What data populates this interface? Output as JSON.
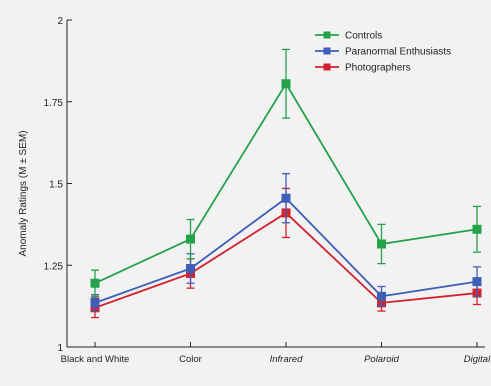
{
  "chart_data": {
    "type": "line",
    "title": "",
    "xlabel": "",
    "ylabel": "Anomaly Ratings (M ± SEM)",
    "ylim": [
      1,
      2
    ],
    "yticks": [
      "1",
      "1.25",
      "1.5",
      "1.75",
      "2"
    ],
    "yticks_values": [
      1,
      1.25,
      1.5,
      1.75,
      2
    ],
    "categories": [
      "Black and White",
      "Color",
      "Infrared",
      "Polaroid",
      "Digital"
    ],
    "category_italic": [
      false,
      false,
      true,
      true,
      true
    ],
    "grid": false,
    "legend_position": "top-right",
    "series": [
      {
        "name": "Controls",
        "color": "#23a24a",
        "values": [
          1.195,
          1.33,
          1.805,
          1.315,
          1.36
        ],
        "errors": [
          0.04,
          0.06,
          0.105,
          0.06,
          0.07
        ]
      },
      {
        "name": "Paranormal Enthusiasts",
        "color": "#3d5fb7",
        "values": [
          1.135,
          1.24,
          1.455,
          1.155,
          1.2
        ],
        "errors": [
          0.025,
          0.045,
          0.075,
          0.03,
          0.045
        ]
      },
      {
        "name": "Photographers",
        "color": "#d4212d",
        "values": [
          1.12,
          1.225,
          1.41,
          1.135,
          1.165
        ],
        "errors": [
          0.03,
          0.045,
          0.075,
          0.025,
          0.035
        ]
      }
    ]
  }
}
